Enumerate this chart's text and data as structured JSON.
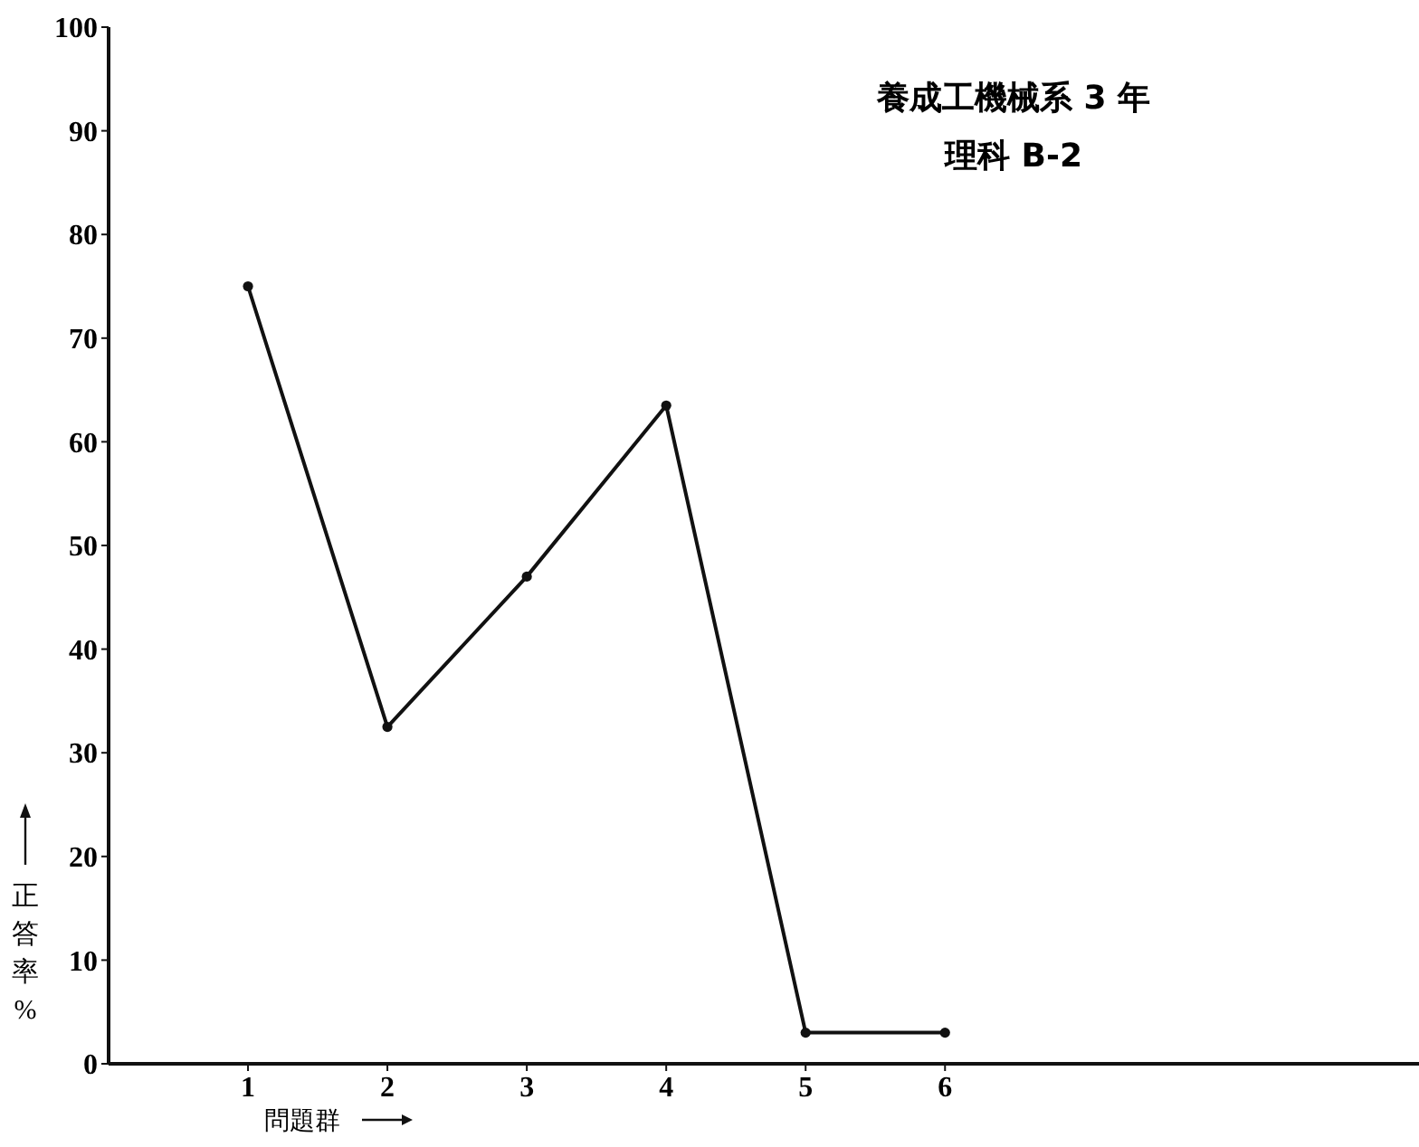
{
  "chart_data": {
    "type": "line",
    "title": "養成工機械系 3 年",
    "subtitle": "理科 B-2",
    "xlabel": "問題群",
    "ylabel": "正答率 %",
    "x": [
      1,
      2,
      3,
      4,
      5,
      6
    ],
    "series": [
      {
        "color": "#111111",
        "values": [
          75,
          32.5,
          47,
          63.5,
          3,
          3
        ]
      }
    ],
    "xlim": [
      0,
      9.4
    ],
    "xticks": [
      1,
      2,
      3,
      4,
      5,
      6
    ],
    "ylim": [
      0,
      100
    ],
    "yticks": [
      0,
      10,
      20,
      30,
      40,
      50,
      60,
      70,
      80,
      90,
      100
    ],
    "marker": "circle",
    "line_style": "solid",
    "grid": false
  }
}
